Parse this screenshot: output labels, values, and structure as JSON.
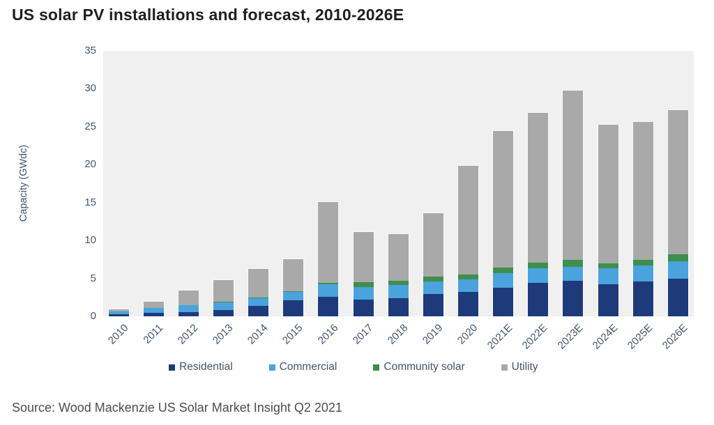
{
  "title": "US solar PV installations and forecast, 2010-2026E",
  "source": "Source: Wood Mackenzie US Solar Market Insight Q2 2021",
  "theme": {
    "plot_background": "#f0f0f1",
    "page_background": "#ffffff",
    "axis_text_color": "#44546a",
    "title_color": "#1f1f1f",
    "source_color": "#4d4d4d"
  },
  "chart_data": {
    "type": "bar",
    "stacked": true,
    "title": "US solar PV installations and forecast, 2010-2026E",
    "xlabel": "",
    "ylabel": "Capacity (GWdc)",
    "ylim": [
      0,
      35
    ],
    "yticks": [
      0,
      5,
      10,
      15,
      20,
      25,
      30,
      35
    ],
    "grid": false,
    "legend_position": "bottom",
    "categories": [
      "2010",
      "2011",
      "2012",
      "2013",
      "2014",
      "2015",
      "2016",
      "2017",
      "2018",
      "2019",
      "2020",
      "2021E",
      "2022E",
      "2023E",
      "2024E",
      "2025E",
      "2026E"
    ],
    "series": [
      {
        "name": "Residential",
        "color": "#1e3a7b",
        "values": [
          0.3,
          0.45,
          0.55,
          0.8,
          1.35,
          2.1,
          2.6,
          2.2,
          2.35,
          2.9,
          3.2,
          3.8,
          4.4,
          4.7,
          4.25,
          4.6,
          5.0
        ]
      },
      {
        "name": "Commercial",
        "color": "#4aa3dc",
        "values": [
          0.35,
          0.65,
          0.9,
          1.05,
          1.0,
          1.1,
          1.6,
          1.7,
          1.75,
          1.7,
          1.7,
          1.9,
          1.9,
          1.8,
          2.05,
          2.15,
          2.3
        ]
      },
      {
        "name": "Community solar",
        "color": "#3e8e4d",
        "values": [
          0.0,
          0.05,
          0.0,
          0.05,
          0.1,
          0.1,
          0.25,
          0.6,
          0.6,
          0.6,
          0.65,
          0.75,
          0.8,
          0.95,
          0.7,
          0.7,
          0.85
        ]
      },
      {
        "name": "Utility",
        "color": "#a9a9a9",
        "values": [
          0.25,
          0.8,
          1.95,
          2.9,
          3.8,
          4.2,
          10.65,
          6.6,
          6.1,
          8.4,
          14.3,
          17.95,
          19.7,
          22.35,
          18.25,
          18.15,
          19.05
        ]
      }
    ],
    "totals": [
      0.9,
      1.95,
      3.4,
      4.8,
      6.25,
      7.5,
      15.1,
      11.1,
      10.8,
      13.6,
      19.85,
      24.4,
      26.8,
      29.8,
      25.25,
      25.6,
      27.2
    ]
  }
}
